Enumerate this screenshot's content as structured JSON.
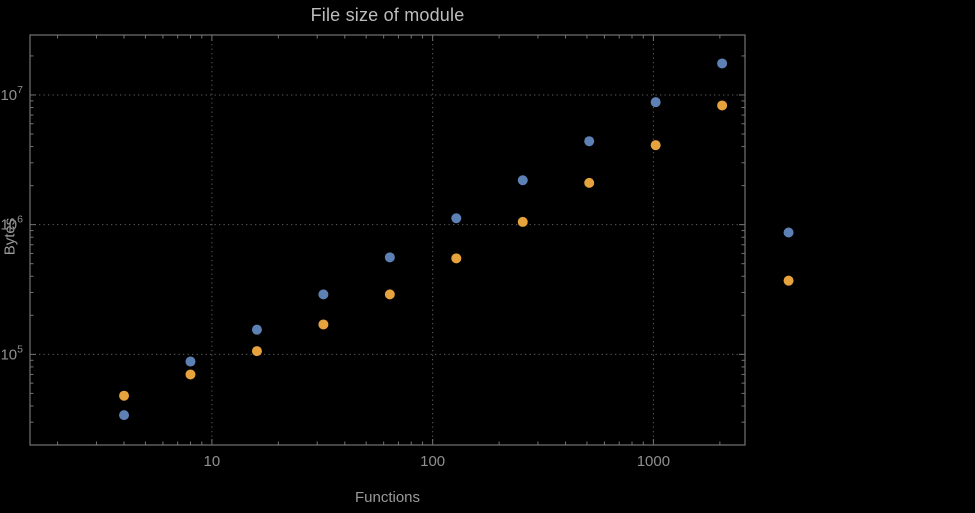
{
  "chart_data": {
    "type": "scatter",
    "title": "File size of module",
    "xlabel": "Functions",
    "ylabel": "Bytes",
    "x_scale": "log",
    "y_scale": "log",
    "xlim": [
      1.5,
      2600
    ],
    "ylim": [
      20000,
      29000000
    ],
    "grid": "dotted",
    "legend": "none",
    "x_ticks": [
      {
        "value": 10,
        "label": "10"
      },
      {
        "value": 100,
        "label": "100"
      },
      {
        "value": 1000,
        "label": "1000"
      }
    ],
    "y_ticks": [
      {
        "value": 100000,
        "mantissa": "10",
        "exponent": "5"
      },
      {
        "value": 1000000,
        "mantissa": "10",
        "exponent": "6"
      },
      {
        "value": 10000000,
        "mantissa": "10",
        "exponent": "7"
      }
    ],
    "series": [
      {
        "name": "blue",
        "color": "#5e81b5",
        "marker_radius": 5,
        "points": [
          {
            "x": 4,
            "y": 34000
          },
          {
            "x": 8,
            "y": 88000
          },
          {
            "x": 16,
            "y": 155000
          },
          {
            "x": 32,
            "y": 290000
          },
          {
            "x": 64,
            "y": 560000
          },
          {
            "x": 128,
            "y": 1120000
          },
          {
            "x": 256,
            "y": 2200000
          },
          {
            "x": 512,
            "y": 4400000
          },
          {
            "x": 1024,
            "y": 8800000
          },
          {
            "x": 2048,
            "y": 17500000
          },
          {
            "x": 4096,
            "y": 870000
          }
        ]
      },
      {
        "name": "orange",
        "color": "#e6a23c",
        "marker_radius": 5,
        "points": [
          {
            "x": 4,
            "y": 48000
          },
          {
            "x": 8,
            "y": 70000
          },
          {
            "x": 16,
            "y": 106000
          },
          {
            "x": 32,
            "y": 170000
          },
          {
            "x": 64,
            "y": 290000
          },
          {
            "x": 128,
            "y": 550000
          },
          {
            "x": 256,
            "y": 1050000
          },
          {
            "x": 512,
            "y": 2100000
          },
          {
            "x": 1024,
            "y": 4100000
          },
          {
            "x": 2048,
            "y": 8300000
          },
          {
            "x": 4096,
            "y": 370000
          }
        ]
      }
    ],
    "colors": {
      "background": "#000000",
      "frame": "#737373",
      "grid": "#5c5c5c",
      "tick_label": "#8f8f8f",
      "axis_label": "#9a9a9a",
      "title": "#bdbdbd"
    }
  }
}
